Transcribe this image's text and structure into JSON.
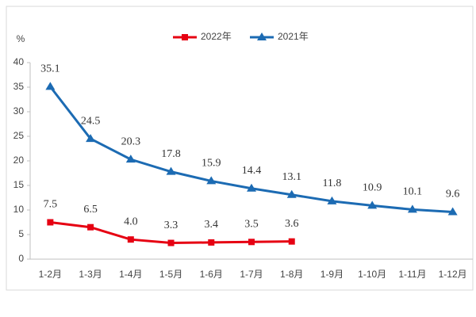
{
  "chart_data": {
    "type": "line",
    "y_label": "%",
    "categories": [
      "1-2月",
      "1-3月",
      "1-4月",
      "1-5月",
      "1-6月",
      "1-7月",
      "1-8月",
      "1-9月",
      "1-10月",
      "1-11月",
      "1-12月"
    ],
    "series": [
      {
        "name": "2022年",
        "color": "#e60012",
        "marker": "square",
        "values": [
          7.5,
          6.5,
          4.0,
          3.3,
          3.4,
          3.5,
          3.6,
          null,
          null,
          null,
          null
        ],
        "value_labels": [
          "7.5",
          "6.5",
          "4.0",
          "3.3",
          "3.4",
          "3.5",
          "3.6",
          null,
          null,
          null,
          null
        ]
      },
      {
        "name": "2021年",
        "color": "#1c6bb3",
        "marker": "triangle",
        "values": [
          35.1,
          24.5,
          20.3,
          17.8,
          15.9,
          14.4,
          13.1,
          11.8,
          10.9,
          10.1,
          9.6
        ],
        "value_labels": [
          "35.1",
          "24.5",
          "20.3",
          "17.8",
          "15.9",
          "14.4",
          "13.1",
          "11.8",
          "10.9",
          "10.1",
          "9.6"
        ]
      }
    ],
    "ylim": [
      0,
      40
    ],
    "yticks": [
      0,
      5,
      10,
      15,
      20,
      25,
      30,
      35,
      40
    ],
    "grid": false,
    "legend": "top"
  }
}
